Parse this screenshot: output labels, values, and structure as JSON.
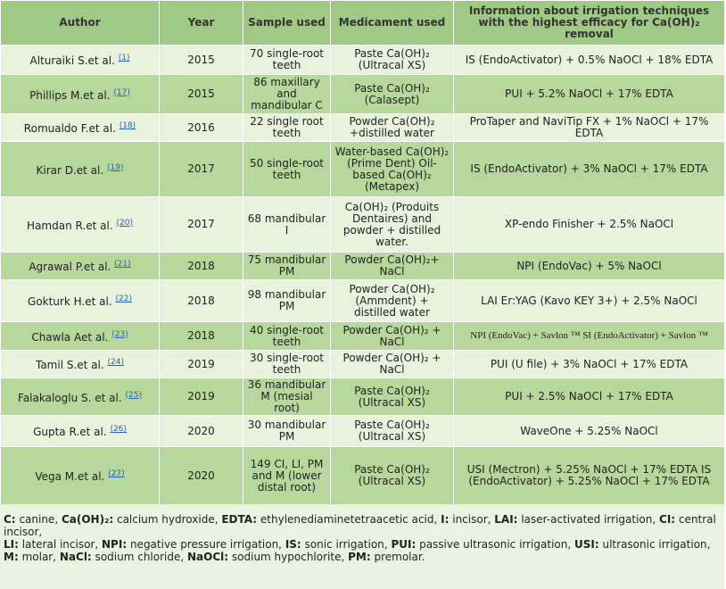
{
  "table": {
    "header": [
      "Author",
      "Year",
      "Sample used",
      "Medicament used",
      "Information about irrigation techniques with the highest efficacy for Ca(OH)₂ removal"
    ],
    "rows": [
      {
        "author": "Alturaiki S.et al.",
        "ref": "(1)",
        "year": "2015",
        "sample": "70 single-root teeth",
        "medicament": "Paste Ca(OH)₂ (Ultracal XS)",
        "info": "IS (EndoActivator) + 0.5% NaOCl + 18% EDTA"
      },
      {
        "author": "Phillips M.et al.",
        "ref": "(17)",
        "year": "2015",
        "sample": "86 maxillary and mandibular C",
        "medicament": "Paste Ca(OH)₂ (Calasept)",
        "info": "PUI + 5.2% NaOCl + 17% EDTA"
      },
      {
        "author": "Romualdo F.et al.",
        "ref": "(18)",
        "year": "2016",
        "sample": "22 single root teeth",
        "medicament": "Powder Ca(OH)₂ +distilled water",
        "info": "ProTaper and NaviTip FX + 1% NaOCl + 17% EDTA"
      },
      {
        "author": "Kirar D.et al.",
        "ref": "(19)",
        "year": "2017",
        "sample": "50 single-root teeth",
        "medicament": "Water-based Ca(OH)₂ (Prime Dent) Oil-based Ca(OH)₂ (Metapex)",
        "info": "IS (EndoActivator) + 3% NaOCl + 17% EDTA"
      },
      {
        "author": "Hamdan R.et al.",
        "ref": "(20)",
        "year": "2017",
        "sample": "68 mandibular I",
        "medicament": "Ca(OH)₂ (Produits Dentaires) and powder + distilled water.",
        "info": "XP-endo Finisher + 2.5% NaOCl"
      },
      {
        "author": "Agrawal P.et al.",
        "ref": "(21)",
        "year": "2018",
        "sample": "75 mandibular PM",
        "medicament": "Powder Ca(OH)₂+ NaCl",
        "info": "NPI (EndoVac) + 5% NaOCl"
      },
      {
        "author": "Gokturk H.et al.",
        "ref": "(22)",
        "year": "2018",
        "sample": "98 mandibular PM",
        "medicament": "Powder Ca(OH)₂ (Ammdent) + distilled water",
        "info": "LAI Er:YAG (Kavo KEY 3+) + 2.5% NaOCl"
      },
      {
        "author": "Chawla Aet al.",
        "ref": "(23)",
        "year": "2018",
        "sample": "40 single-root teeth",
        "medicament": "Powder Ca(OH)₂ + NaCl",
        "info": "NPI (EndoVac) + Savlon ™ SI (EndoActivator) + Savlon ™"
      },
      {
        "author": "Tamil S.et al.",
        "ref": "(24)",
        "year": "2019",
        "sample": "30 single-root teeth",
        "medicament": "Powder Ca(OH)₂ + NaCl",
        "info": "PUI (U file) + 3% NaOCl + 17% EDTA"
      },
      {
        "author": "Falakaloglu S. et al.",
        "ref": "(25)",
        "year": "2019",
        "sample": "36 mandibular M (mesial root)",
        "medicament": "Paste Ca(OH)₂ (Ultracal XS)",
        "info": "PUI + 2.5% NaOCl + 17% EDTA"
      },
      {
        "author": "Gupta R.et al.",
        "ref": "(26)",
        "year": "2020",
        "sample": "30 mandibular PM",
        "medicament": "Paste Ca(OH)₂ (Ultracal XS)",
        "info": "WaveOne + 5.25% NaOCl"
      },
      {
        "author": "Vega M.et al.",
        "ref": "(27)",
        "year": "2020",
        "sample": "149 CI, LI, PM and M (lower distal root)",
        "medicament": "Paste Ca(OH)₂ (Ultracal XS)",
        "info": "USI (Mectron) + 5.25% NaOCl + 17% EDTA IS (EndoActivator) + 5.25% NaOCl + 17% EDTA"
      }
    ]
  },
  "footnote": [
    [
      {
        "term": "C:",
        "text": "canine,"
      },
      {
        "term": "Ca(OH)₂:",
        "text": "calcium hydroxide,"
      },
      {
        "term": "EDTA:",
        "text": "ethylenediaminetetraacetic acid,"
      },
      {
        "term": "I:",
        "text": "incisor,"
      },
      {
        "term": "LAI:",
        "text": "laser-activated irrigation,"
      },
      {
        "term": "CI:",
        "text": "central incisor,"
      }
    ],
    [
      {
        "term": "LI:",
        "text": "lateral incisor,"
      },
      {
        "term": "NPI:",
        "text": "negative pressure irrigation,"
      },
      {
        "term": "IS:",
        "text": "sonic irrigation,"
      },
      {
        "term": "PUI:",
        "text": "passive ultrasonic irrigation,"
      },
      {
        "term": "USI:",
        "text": "ultrasonic irrigation,"
      }
    ],
    [
      {
        "term": "M:",
        "text": "molar,"
      },
      {
        "term": "NaCl:",
        "text": "sodium chloride,"
      },
      {
        "term": "NaOCl:",
        "text": "sodium hypochlorite,"
      },
      {
        "term": "PM:",
        "text": "premolar."
      }
    ]
  ]
}
